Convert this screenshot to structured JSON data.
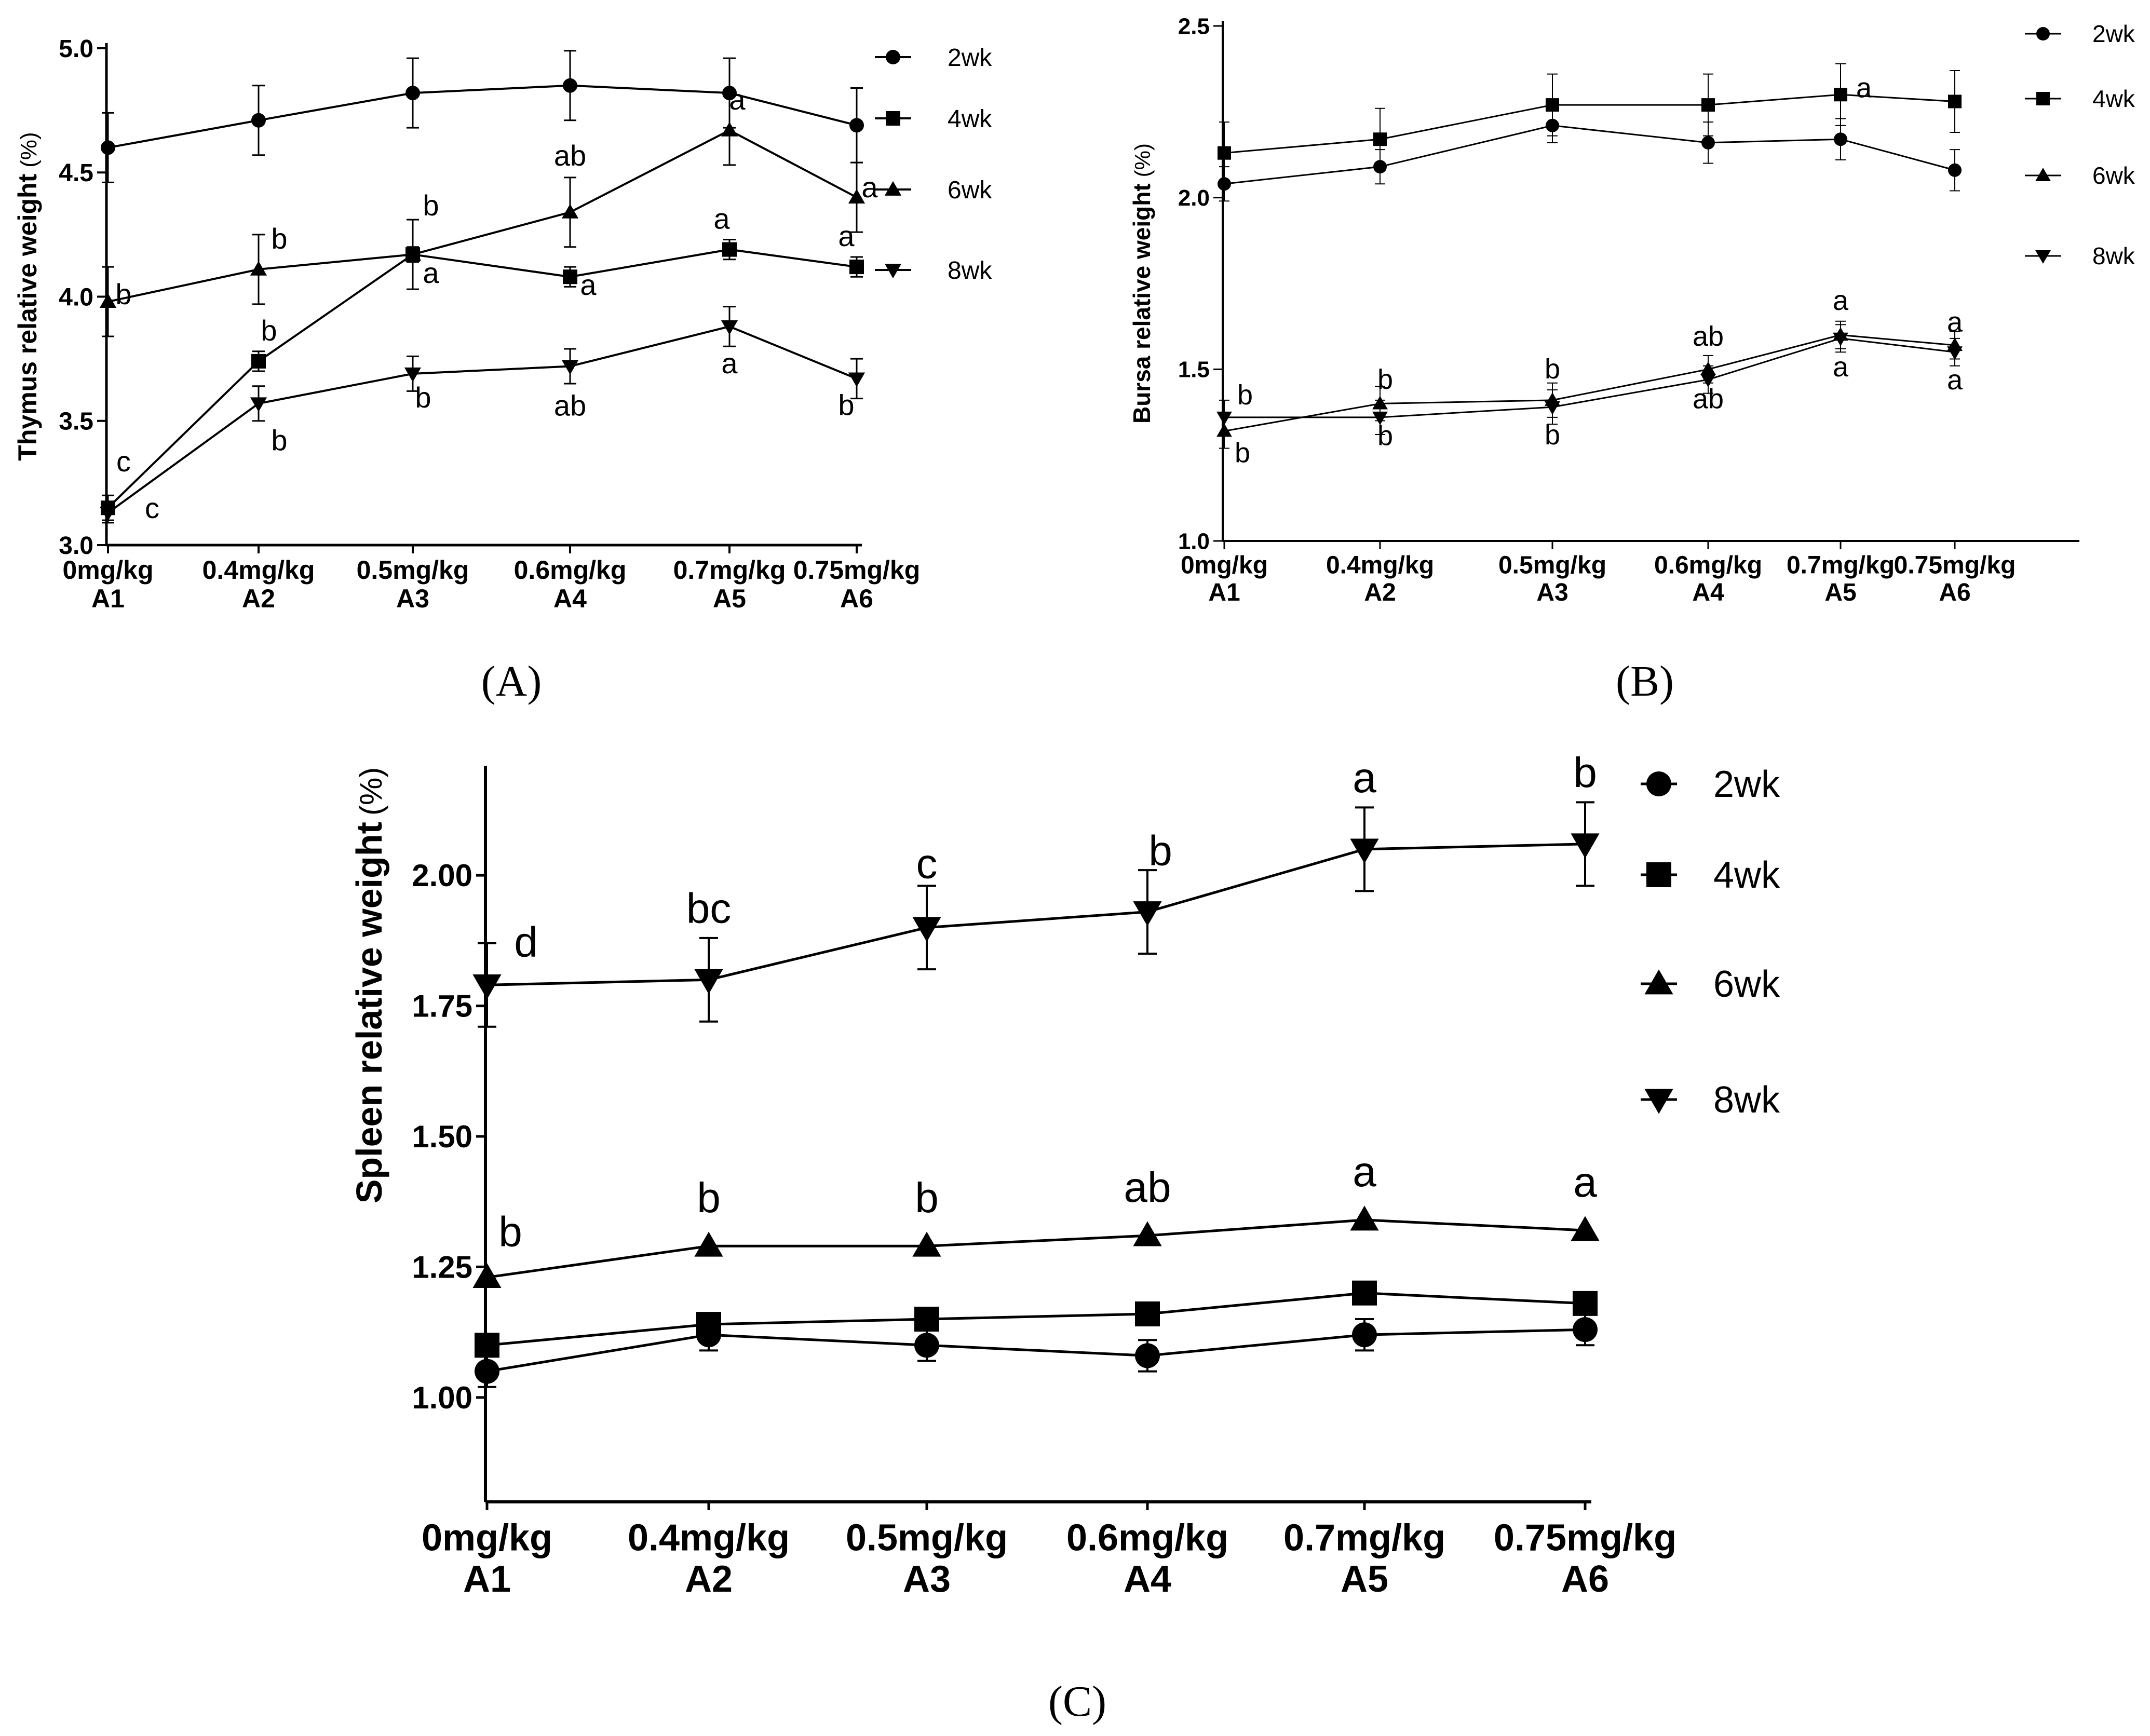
{
  "figure": {
    "panels": [
      {
        "id": "A",
        "caption": "(A)"
      },
      {
        "id": "B",
        "caption": "(B)"
      },
      {
        "id": "C",
        "caption": "(C)"
      }
    ]
  },
  "chart_data": [
    {
      "id": "A",
      "type": "line",
      "ylabel": "Thymus relative weight",
      "yunit": "(%)",
      "ylim": [
        3.0,
        5.0
      ],
      "yticks": [
        3.0,
        3.5,
        4.0,
        4.5,
        5.0
      ],
      "ytick_labels": [
        "3.0",
        "3.5",
        "4.0",
        "4.5",
        "5.0"
      ],
      "categories": [
        {
          "dose": "0mg/kg",
          "group": "A1"
        },
        {
          "dose": "0.4mg/kg",
          "group": "A2"
        },
        {
          "dose": "0.5mg/kg",
          "group": "A3"
        },
        {
          "dose": "0.6mg/kg",
          "group": "A4"
        },
        {
          "dose": "0.7mg/kg",
          "group": "A5"
        },
        {
          "dose": "0.75mg/kg",
          "group": "A6"
        }
      ],
      "legend_position": "right",
      "series": [
        {
          "name": "2wk",
          "marker": "circle",
          "values": [
            4.6,
            4.71,
            4.82,
            4.85,
            4.82,
            4.69
          ],
          "errors": [
            0.14,
            0.14,
            0.14,
            0.14,
            0.14,
            0.15
          ],
          "letters": [
            "",
            "",
            "",
            "",
            "",
            ""
          ]
        },
        {
          "name": "4wk",
          "marker": "square",
          "values": [
            3.15,
            3.74,
            4.17,
            4.08,
            4.19,
            4.12
          ],
          "errors": [
            0.05,
            0.04,
            0.03,
            0.04,
            0.04,
            0.04
          ],
          "letters": [
            "c",
            "b",
            "a",
            "a",
            "a",
            "a"
          ]
        },
        {
          "name": "6wk",
          "marker": "triangle-up",
          "values": [
            3.98,
            4.11,
            4.17,
            4.34,
            4.67,
            4.4
          ],
          "errors": [
            0.14,
            0.14,
            0.14,
            0.14,
            0.14,
            0.14
          ],
          "letters": [
            "b",
            "b",
            "b",
            "ab",
            "a",
            "a"
          ]
        },
        {
          "name": "8wk",
          "marker": "triangle-down",
          "values": [
            3.13,
            3.57,
            3.69,
            3.72,
            3.88,
            3.67
          ],
          "errors": [
            0.04,
            0.07,
            0.07,
            0.07,
            0.08,
            0.08
          ],
          "letters": [
            "c",
            "b",
            "b",
            "ab",
            "a",
            "b"
          ]
        }
      ]
    },
    {
      "id": "B",
      "type": "line",
      "ylabel": "Bursa relative weight",
      "yunit": "(%)",
      "ylim": [
        1.0,
        2.5
      ],
      "yticks": [
        1.0,
        1.5,
        2.0,
        2.5
      ],
      "ytick_labels": [
        "1.0",
        "1.5",
        "2.0",
        "2.5"
      ],
      "categories": [
        {
          "dose": "0mg/kg",
          "group": "A1"
        },
        {
          "dose": "0.4mg/kg",
          "group": "A2"
        },
        {
          "dose": "0.5mg/kg",
          "group": "A3"
        },
        {
          "dose": "0.6mg/kg",
          "group": "A4"
        },
        {
          "dose": "0.7mg/kg",
          "group": "A5"
        },
        {
          "dose": "0.75mg/kg",
          "group": "A6"
        }
      ],
      "legend_position": "right",
      "series": [
        {
          "name": "2wk",
          "marker": "circle",
          "values": [
            2.04,
            2.09,
            2.21,
            2.16,
            2.17,
            2.08
          ],
          "errors": [
            0.05,
            0.05,
            0.05,
            0.06,
            0.06,
            0.06
          ],
          "letters": [
            "",
            "",
            "",
            "",
            "",
            ""
          ]
        },
        {
          "name": "4wk",
          "marker": "square",
          "values": [
            2.13,
            2.17,
            2.27,
            2.27,
            2.3,
            2.28
          ],
          "errors": [
            0.09,
            0.09,
            0.09,
            0.09,
            0.09,
            0.09
          ],
          "letters": [
            "",
            "",
            "",
            "",
            "a",
            ""
          ]
        },
        {
          "name": "6wk",
          "marker": "triangle-up",
          "values": [
            1.32,
            1.4,
            1.41,
            1.5,
            1.6,
            1.57
          ],
          "errors": [
            0.05,
            0.05,
            0.05,
            0.04,
            0.04,
            0.04
          ],
          "letters": [
            "b",
            "b",
            "b",
            "ab",
            "a",
            "a"
          ]
        },
        {
          "name": "8wk",
          "marker": "triangle-down",
          "values": [
            1.36,
            1.36,
            1.39,
            1.47,
            1.59,
            1.55
          ],
          "errors": [
            0.05,
            0.05,
            0.05,
            0.04,
            0.04,
            0.04
          ],
          "letters": [
            "b",
            "b",
            "b",
            "ab",
            "a",
            "a"
          ]
        }
      ]
    },
    {
      "id": "C",
      "type": "line",
      "ylabel": "Spleen relative weight",
      "yunit": "(%)",
      "ylim": [
        0.8,
        2.2
      ],
      "yticks": [
        1.0,
        1.25,
        1.5,
        1.75,
        2.0
      ],
      "ytick_labels": [
        "1.00",
        "1.25",
        "1.50",
        "1.75",
        "2.00"
      ],
      "categories": [
        {
          "dose": "0mg/kg",
          "group": "A1"
        },
        {
          "dose": "0.4mg/kg",
          "group": "A2"
        },
        {
          "dose": "0.5mg/kg",
          "group": "A3"
        },
        {
          "dose": "0.6mg/kg",
          "group": "A4"
        },
        {
          "dose": "0.7mg/kg",
          "group": "A5"
        },
        {
          "dose": "0.75mg/kg",
          "group": "A6"
        }
      ],
      "legend_position": "right",
      "series": [
        {
          "name": "2wk",
          "marker": "circle",
          "values": [
            1.05,
            1.12,
            1.1,
            1.08,
            1.12,
            1.13
          ],
          "errors": [
            0.03,
            0.03,
            0.03,
            0.03,
            0.03,
            0.03
          ],
          "letters": [
            "",
            "",
            "",
            "",
            "",
            ""
          ]
        },
        {
          "name": "4wk",
          "marker": "square",
          "values": [
            1.1,
            1.14,
            1.15,
            1.16,
            1.2,
            1.18
          ],
          "errors": [
            0.0,
            0.0,
            0.0,
            0.0,
            0.0,
            0.0
          ],
          "letters": [
            "",
            "",
            "",
            "",
            "",
            ""
          ]
        },
        {
          "name": "6wk",
          "marker": "triangle-up",
          "values": [
            1.23,
            1.29,
            1.29,
            1.31,
            1.34,
            1.32
          ],
          "errors": [
            0.0,
            0.0,
            0.0,
            0.0,
            0.0,
            0.0
          ],
          "letters": [
            "b",
            "b",
            "b",
            "ab",
            "a",
            "a"
          ]
        },
        {
          "name": "8wk",
          "marker": "triangle-down",
          "values": [
            1.79,
            1.8,
            1.9,
            1.93,
            2.05,
            2.06
          ],
          "errors": [
            0.08,
            0.08,
            0.08,
            0.08,
            0.08,
            0.08
          ],
          "letters": [
            "d",
            "bc",
            "c",
            "b",
            "a",
            "b"
          ]
        }
      ]
    }
  ]
}
